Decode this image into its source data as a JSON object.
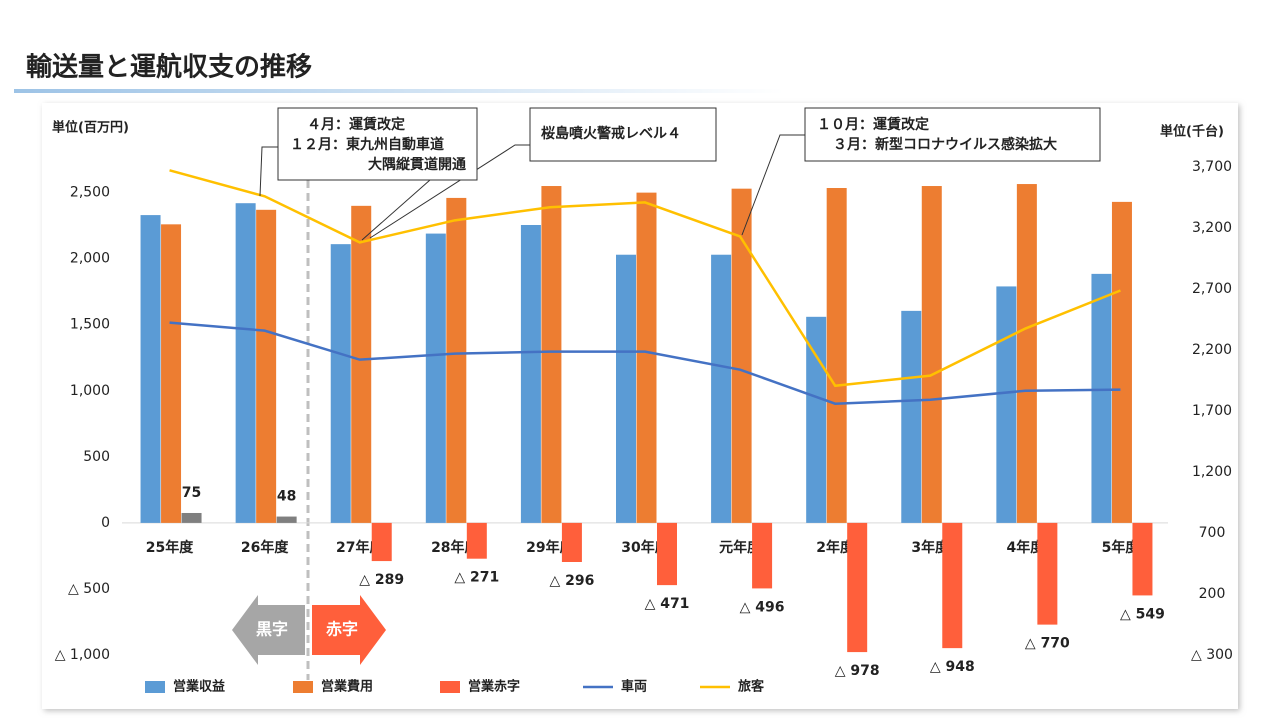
{
  "chart_data": {
    "type": "bar",
    "title": "輸送量と運航収支の推移",
    "y_label": "単位(百万円)",
    "y2_label": "単位(千台)",
    "categories": [
      "25年度",
      "26年度",
      "27年度",
      "28年度",
      "29年度",
      "30年度",
      "元年度",
      "2年度",
      "3年度",
      "4年度",
      "5年度"
    ],
    "series": [
      {
        "name": "営業収益",
        "type": "bar",
        "color": "#5b9bd5",
        "values": [
          2330,
          2420,
          2110,
          2190,
          2255,
          2030,
          2030,
          1560,
          1605,
          1790,
          1885
        ]
      },
      {
        "name": "営業費用",
        "type": "bar",
        "color": "#ed7d31",
        "values": [
          2260,
          2370,
          2400,
          2460,
          2550,
          2500,
          2530,
          2535,
          2550,
          2565,
          2430
        ]
      },
      {
        "name": "営業赤字",
        "type": "bar",
        "color": "#ff5f3b",
        "colors": [
          "#7f7f7f",
          "#7f7f7f",
          "#ff5f3b",
          "#ff5f3b",
          "#ff5f3b",
          "#ff5f3b",
          "#ff5f3b",
          "#ff5f3b",
          "#ff5f3b",
          "#ff5f3b",
          "#ff5f3b"
        ],
        "values": [
          75,
          48,
          -289,
          -271,
          -296,
          -471,
          -496,
          -978,
          -948,
          -770,
          -549
        ],
        "value_labels": [
          "75",
          "48",
          "△ 289",
          "△ 271",
          "△ 296",
          "△ 471",
          "△ 496",
          "△ 978",
          "△ 948",
          "△ 770",
          "△ 549"
        ]
      },
      {
        "name": "車両",
        "type": "line",
        "axis": "y2",
        "color": "#4472c4",
        "values": [
          2425,
          2359,
          2121,
          2170,
          2187,
          2187,
          2039,
          1760,
          1792,
          1866,
          1875
        ]
      },
      {
        "name": "旅客",
        "type": "line",
        "axis": "y2",
        "color": "#ffc000",
        "values": [
          3673,
          3460,
          3082,
          3263,
          3370,
          3410,
          3131,
          1907,
          1990,
          2376,
          2688
        ]
      }
    ],
    "ylim": [
      -1000,
      2800
    ],
    "yticks": [
      {
        "value": -1000,
        "label": "△ 1,000"
      },
      {
        "value": -500,
        "label": "△ 500"
      },
      0,
      500,
      {
        "value": 1000,
        "label": "1,000"
      },
      {
        "value": 1500,
        "label": "1,500"
      },
      {
        "value": 2000,
        "label": "2,000"
      },
      {
        "value": 2500,
        "label": "2,500"
      }
    ],
    "y2lim": [
      -300,
      3815
    ],
    "y2ticks": [
      {
        "value": -300,
        "label": "△ 300"
      },
      200,
      700,
      {
        "value": 1200,
        "label": "1,200"
      },
      {
        "value": 1700,
        "label": "1,700"
      },
      {
        "value": 2200,
        "label": "2,200"
      },
      {
        "value": 2700,
        "label": "2,700"
      },
      {
        "value": 3200,
        "label": "3,200"
      },
      {
        "value": 3700,
        "label": "3,700"
      }
    ],
    "annotations": {
      "box1": [
        "４月：運賃改定",
        "１２月：東九州自動車道",
        "大隅縦貫道開通"
      ],
      "box2": [
        "桜島噴火警戒レベル４"
      ],
      "box3": [
        "１０月：運賃改定",
        "３月：新型コロナウイルス感染拡大"
      ],
      "profit": "黒字",
      "loss": "赤字"
    }
  }
}
